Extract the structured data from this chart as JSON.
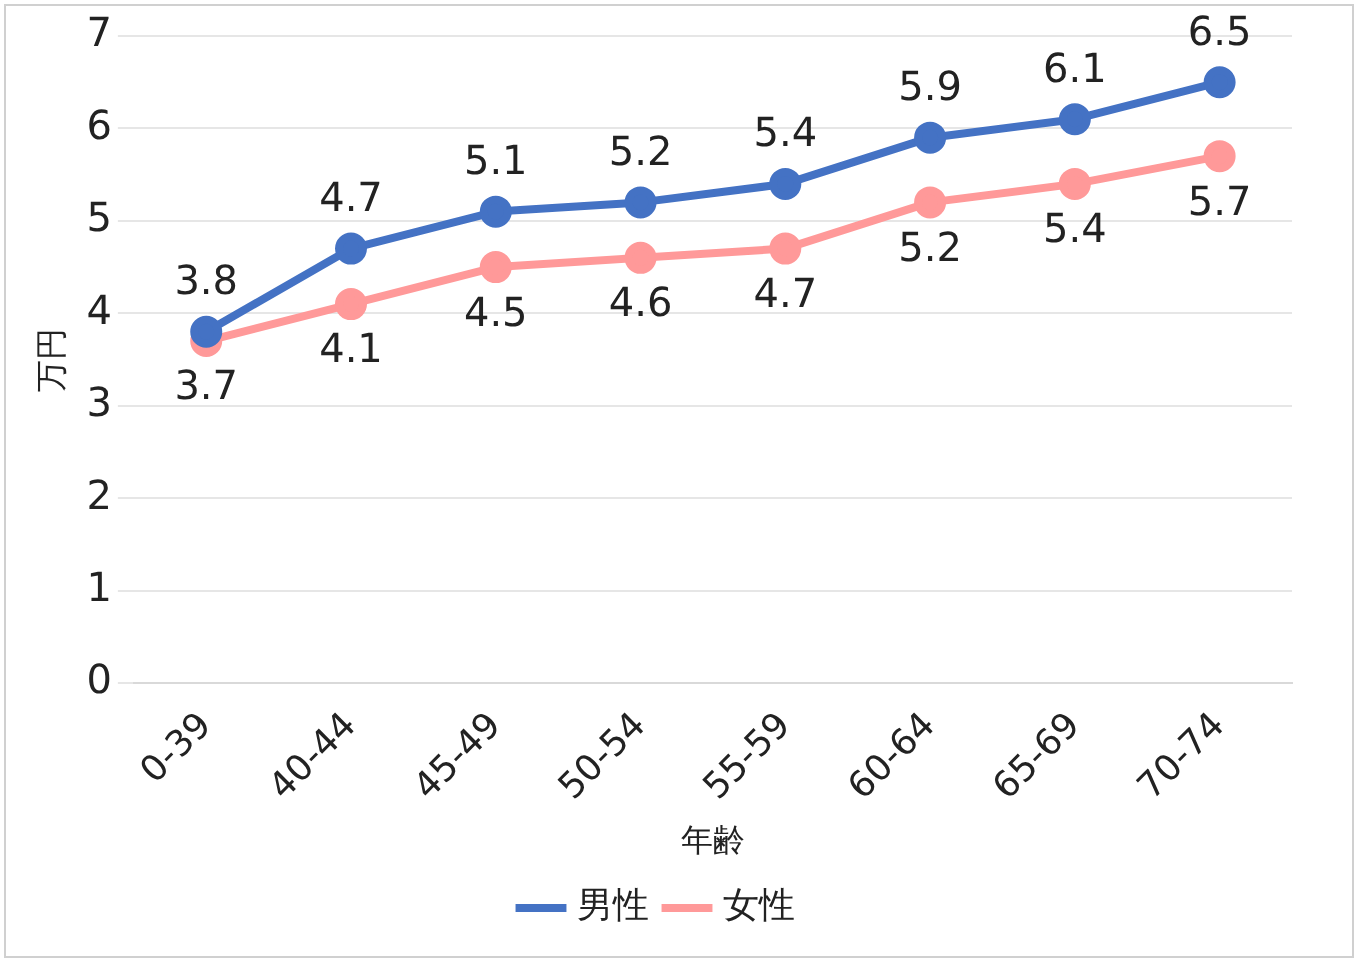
{
  "chart_data": {
    "type": "line",
    "xlabel": "年齢",
    "ylabel": "万円",
    "categories": [
      "0-39",
      "40-44",
      "45-49",
      "50-54",
      "55-59",
      "60-64",
      "65-69",
      "70-74"
    ],
    "series": [
      {
        "name": "男性",
        "color": "#4472c4",
        "values": [
          3.8,
          4.7,
          5.1,
          5.2,
          5.4,
          5.9,
          6.1,
          6.5
        ]
      },
      {
        "name": "女性",
        "color": "#ff9999",
        "values": [
          3.7,
          4.1,
          4.5,
          4.6,
          4.7,
          5.2,
          5.4,
          5.7
        ]
      }
    ],
    "ylim": [
      0,
      7
    ],
    "yticks": [
      0,
      1,
      2,
      3,
      4,
      5,
      6,
      7
    ],
    "grid": "y",
    "legend": "bottom",
    "marker": "circle",
    "line_style": "solid",
    "data_labels": true
  }
}
